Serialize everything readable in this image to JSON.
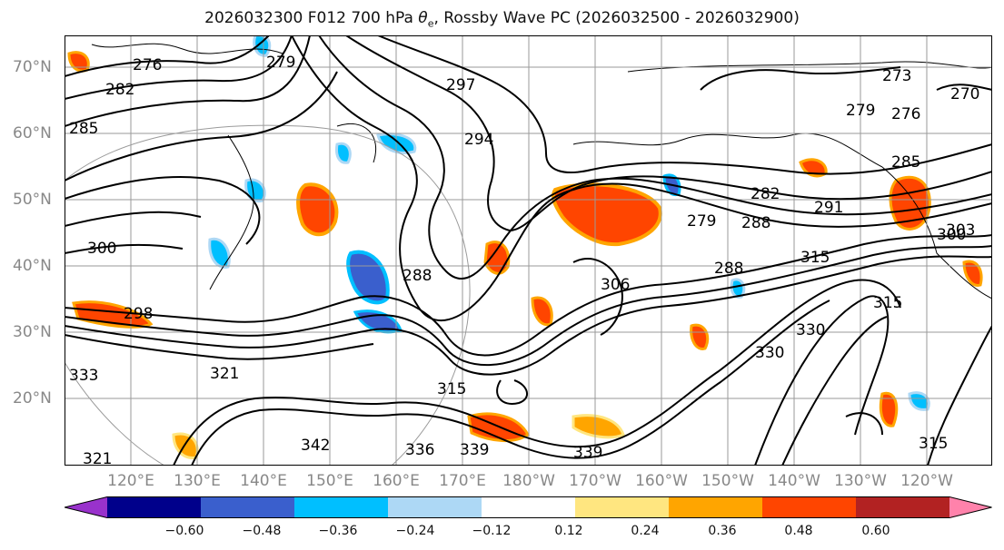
{
  "title_prefix": "2026032300 F012 700 hPa ",
  "title_theta": "θ",
  "title_sub": "e",
  "title_suffix": ", Rossby Wave PC (2026032500 - 2026032900)",
  "lat_labels": [
    "70°N",
    "60°N",
    "50°N",
    "40°N",
    "30°N",
    "20°N"
  ],
  "lon_labels": [
    "120°E",
    "130°E",
    "140°E",
    "150°E",
    "160°E",
    "170°E",
    "180°W",
    "170°W",
    "160°W",
    "150°W",
    "140°W",
    "130°W",
    "120°W"
  ],
  "contour_labels": [
    "276",
    "282",
    "285",
    "279",
    "288",
    "297",
    "294",
    "300",
    "273",
    "279",
    "276",
    "282",
    "285",
    "279",
    "288",
    "291",
    "288",
    "300",
    "315",
    "315",
    "303",
    "339",
    "336",
    "339",
    "342",
    "321",
    "315",
    "330",
    "333",
    "321",
    "315",
    "330",
    "270",
    "298",
    "306"
  ],
  "colorbar": {
    "tick_labels": [
      "−0.60",
      "−0.48",
      "−0.36",
      "−0.24",
      "−0.12",
      "0.12",
      "0.24",
      "0.36",
      "0.48",
      "0.60"
    ],
    "colors": [
      "#9932cc",
      "#00008b",
      "#3a5fcd",
      "#00bfff",
      "#add8f5",
      "#ffffff",
      "#ffe680",
      "#ffa500",
      "#ff4500",
      "#b22222",
      "#ff82ab"
    ]
  }
}
